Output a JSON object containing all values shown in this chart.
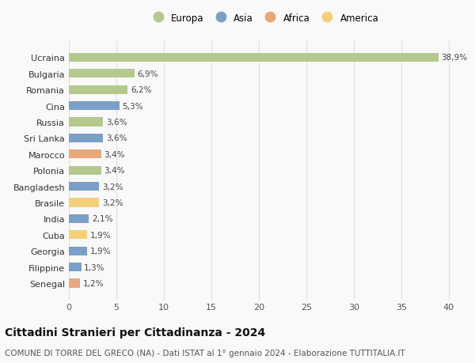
{
  "categories": [
    "Senegal",
    "Filippine",
    "Georgia",
    "Cuba",
    "India",
    "Brasile",
    "Bangladesh",
    "Polonia",
    "Marocco",
    "Sri Lanka",
    "Russia",
    "Cina",
    "Romania",
    "Bulgaria",
    "Ucraina"
  ],
  "values": [
    1.2,
    1.3,
    1.9,
    1.9,
    2.1,
    3.2,
    3.2,
    3.4,
    3.4,
    3.6,
    3.6,
    5.3,
    6.2,
    6.9,
    38.9
  ],
  "labels": [
    "1,2%",
    "1,3%",
    "1,9%",
    "1,9%",
    "2,1%",
    "3,2%",
    "3,2%",
    "3,4%",
    "3,4%",
    "3,6%",
    "3,6%",
    "5,3%",
    "6,2%",
    "6,9%",
    "38,9%"
  ],
  "continents": [
    "Africa",
    "Asia",
    "Asia",
    "America",
    "Asia",
    "America",
    "Asia",
    "Europa",
    "Africa",
    "Asia",
    "Europa",
    "Asia",
    "Europa",
    "Europa",
    "Europa"
  ],
  "continent_colors": {
    "Europa": "#b5c98e",
    "Asia": "#7b9fc7",
    "Africa": "#e8a87c",
    "America": "#f5d07a"
  },
  "legend_order": [
    "Europa",
    "Asia",
    "Africa",
    "America"
  ],
  "title": "Cittadini Stranieri per Cittadinanza - 2024",
  "subtitle": "COMUNE DI TORRE DEL GRECO (NA) - Dati ISTAT al 1° gennaio 2024 - Elaborazione TUTTITALIA.IT",
  "xlim": [
    0,
    41
  ],
  "xticks": [
    0,
    5,
    10,
    15,
    20,
    25,
    30,
    35,
    40
  ],
  "background_color": "#f9f9f9",
  "grid_color": "#e0e0e0",
  "title_fontsize": 10,
  "subtitle_fontsize": 7.5,
  "label_fontsize": 7.5,
  "tick_fontsize": 8,
  "legend_fontsize": 8.5
}
